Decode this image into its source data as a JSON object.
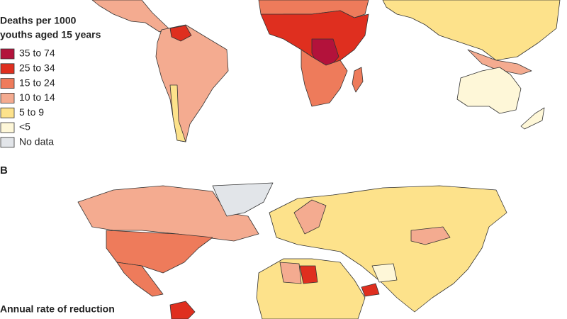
{
  "panel_a": {
    "legend": {
      "title_lines": [
        "Deaths per 1000",
        "youths aged 15 years"
      ],
      "items": [
        {
          "label": "35 to 74",
          "color": "#b3123b"
        },
        {
          "label": "25 to 34",
          "color": "#df2f1f"
        },
        {
          "label": "15 to 24",
          "color": "#ee7b5b"
        },
        {
          "label": "10 to 14",
          "color": "#f4ab90"
        },
        {
          "label": "5 to 9",
          "color": "#fde28b"
        },
        {
          "label": "<5",
          "color": "#fef7d8"
        },
        {
          "label": "No data",
          "color": "#e2e5e9"
        }
      ]
    }
  },
  "panel_b": {
    "label": "B",
    "legend": {
      "title": "Annual rate of reduction"
    }
  }
}
